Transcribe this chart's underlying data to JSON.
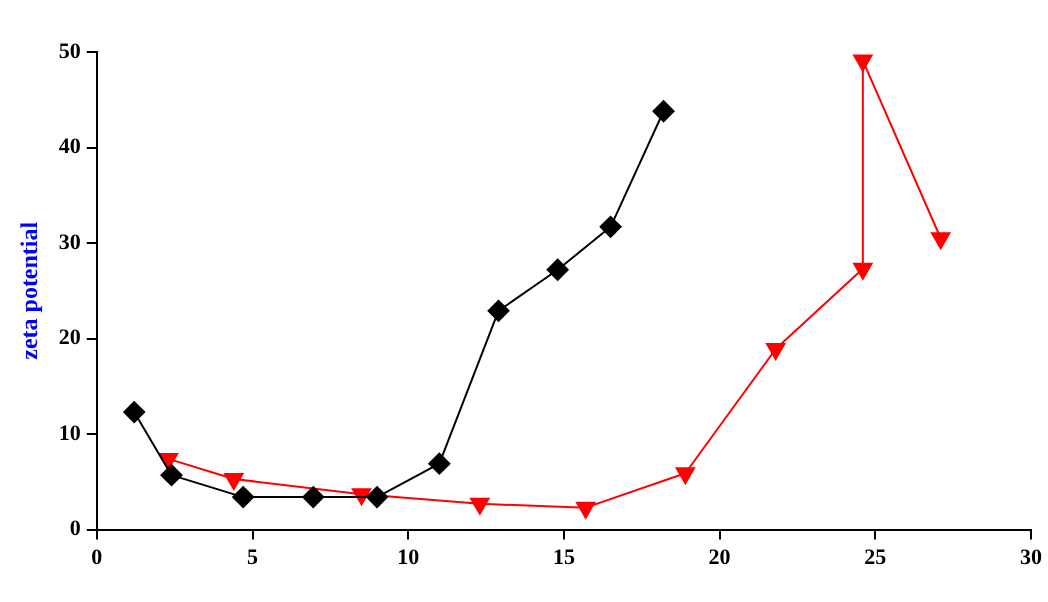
{
  "chart_data": {
    "type": "line",
    "ylabel": "zeta potential",
    "xlim": [
      0,
      30
    ],
    "xticks": [
      0,
      5,
      10,
      15,
      20,
      25,
      30
    ],
    "ylim": [
      0,
      50
    ],
    "yticks": [
      0,
      10,
      20,
      30,
      40,
      50
    ],
    "grid": false,
    "legend": false,
    "line_style": "solid",
    "series": [
      {
        "color": "#000000",
        "marker": "diamond",
        "x": [
          1.2,
          2.4,
          4.7,
          6.95,
          9.0,
          11.0,
          12.9,
          14.8,
          16.5,
          18.2
        ],
        "values": [
          12.3,
          5.7,
          3.4,
          3.4,
          3.4,
          6.9,
          22.9,
          27.2,
          31.7,
          43.8
        ]
      },
      {
        "color": "#ff0000",
        "marker": "triangle",
        "x": [
          2.3,
          4.4,
          8.5,
          12.3,
          15.7,
          18.9,
          21.8,
          24.6,
          24.6,
          27.1
        ],
        "values": [
          7.4,
          5.3,
          3.7,
          2.7,
          2.3,
          5.9,
          18.9,
          27.3,
          49.1,
          30.5
        ]
      }
    ]
  }
}
